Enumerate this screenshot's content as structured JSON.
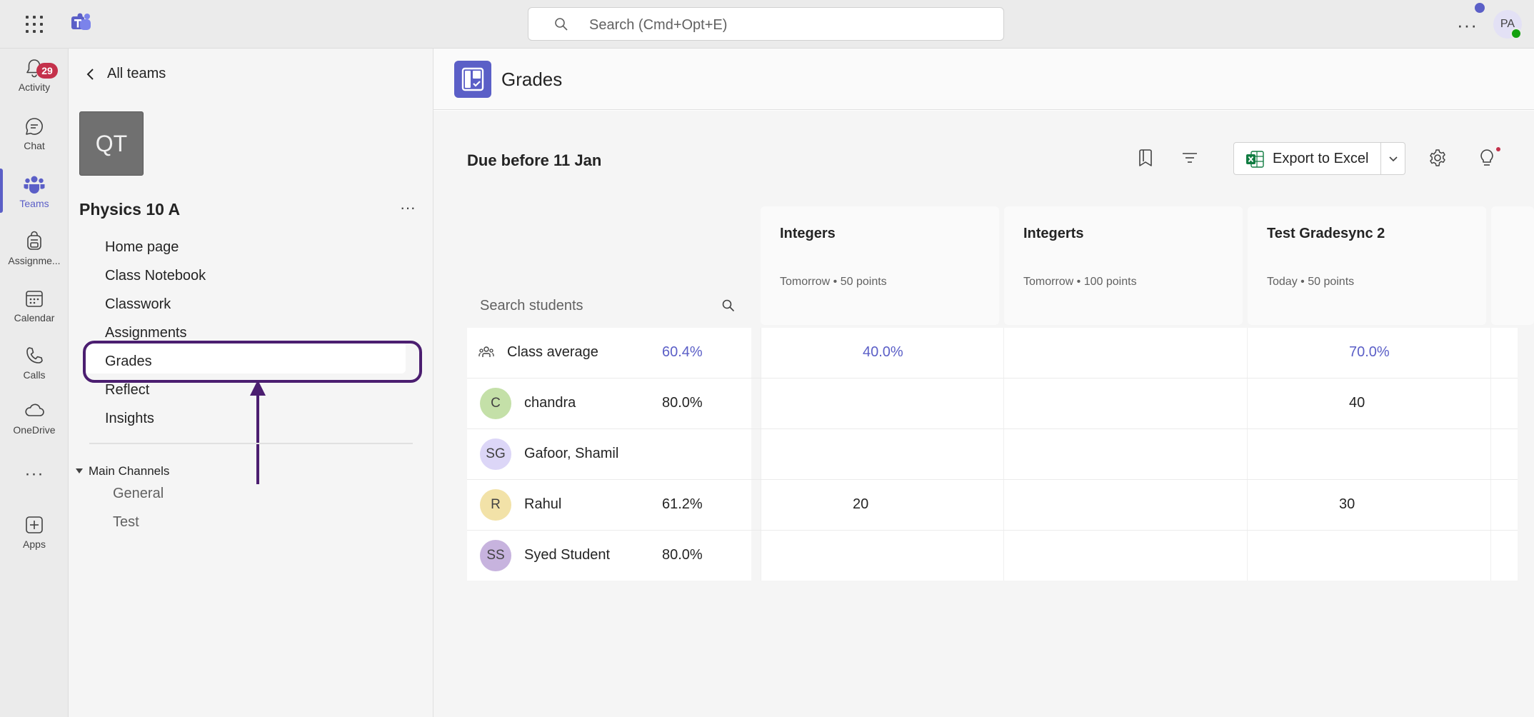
{
  "topbar": {
    "search_placeholder": "Search (Cmd+Opt+E)",
    "more": "···",
    "user_initials": "PA"
  },
  "rail": {
    "items": [
      {
        "label": "Activity",
        "icon": "bell-icon",
        "badge": "29"
      },
      {
        "label": "Chat",
        "icon": "chat-icon"
      },
      {
        "label": "Teams",
        "icon": "teams-icon",
        "active": true
      },
      {
        "label": "Assignme...",
        "icon": "backpack-icon"
      },
      {
        "label": "Calendar",
        "icon": "calendar-icon"
      },
      {
        "label": "Calls",
        "icon": "phone-icon"
      },
      {
        "label": "OneDrive",
        "icon": "cloud-icon"
      },
      {
        "label": "Apps",
        "icon": "add-app-icon"
      }
    ],
    "more": "···"
  },
  "team": {
    "back_label": "All teams",
    "avatar": "QT",
    "name": "Physics 10 A",
    "more": "···",
    "nav": [
      "Home page",
      "Class Notebook",
      "Classwork",
      "Assignments",
      "Grades",
      "Reflect",
      "Insights"
    ],
    "selected": "Grades",
    "channels_header": "Main Channels",
    "channels": [
      "General",
      "Test"
    ]
  },
  "app": {
    "title": "Grades",
    "accent": "#5b5fc7"
  },
  "grades": {
    "due_label": "Due before 11 Jan",
    "export_label": "Export to Excel",
    "search_placeholder": "Search students",
    "columns": [
      {
        "title": "Integers",
        "due": "Tomorrow",
        "points": "50 points"
      },
      {
        "title": "Integerts",
        "due": "Tomorrow",
        "points": "100 points"
      },
      {
        "title": "Test Gradesync 2",
        "due": "Today",
        "points": "50 points"
      }
    ],
    "class_average": {
      "label": "Class average",
      "overall": "60.4%",
      "values": [
        "40.0%",
        "",
        "70.0%"
      ]
    },
    "students": [
      {
        "initials": "C",
        "name": "chandra",
        "overall": "80.0%",
        "values": [
          "",
          "",
          "40"
        ],
        "color": "#c4e0a8"
      },
      {
        "initials": "SG",
        "name": "Gafoor, Shamil",
        "overall": "",
        "values": [
          "",
          "",
          ""
        ],
        "color": "#dcd6f7"
      },
      {
        "initials": "R",
        "name": "Rahul",
        "overall": "61.2%",
        "values": [
          "20",
          "",
          "30"
        ],
        "color": "#f2e2a8"
      },
      {
        "initials": "SS",
        "name": "Syed Student",
        "overall": "80.0%",
        "values": [
          "",
          "",
          ""
        ],
        "color": "#c7b3de"
      }
    ]
  }
}
